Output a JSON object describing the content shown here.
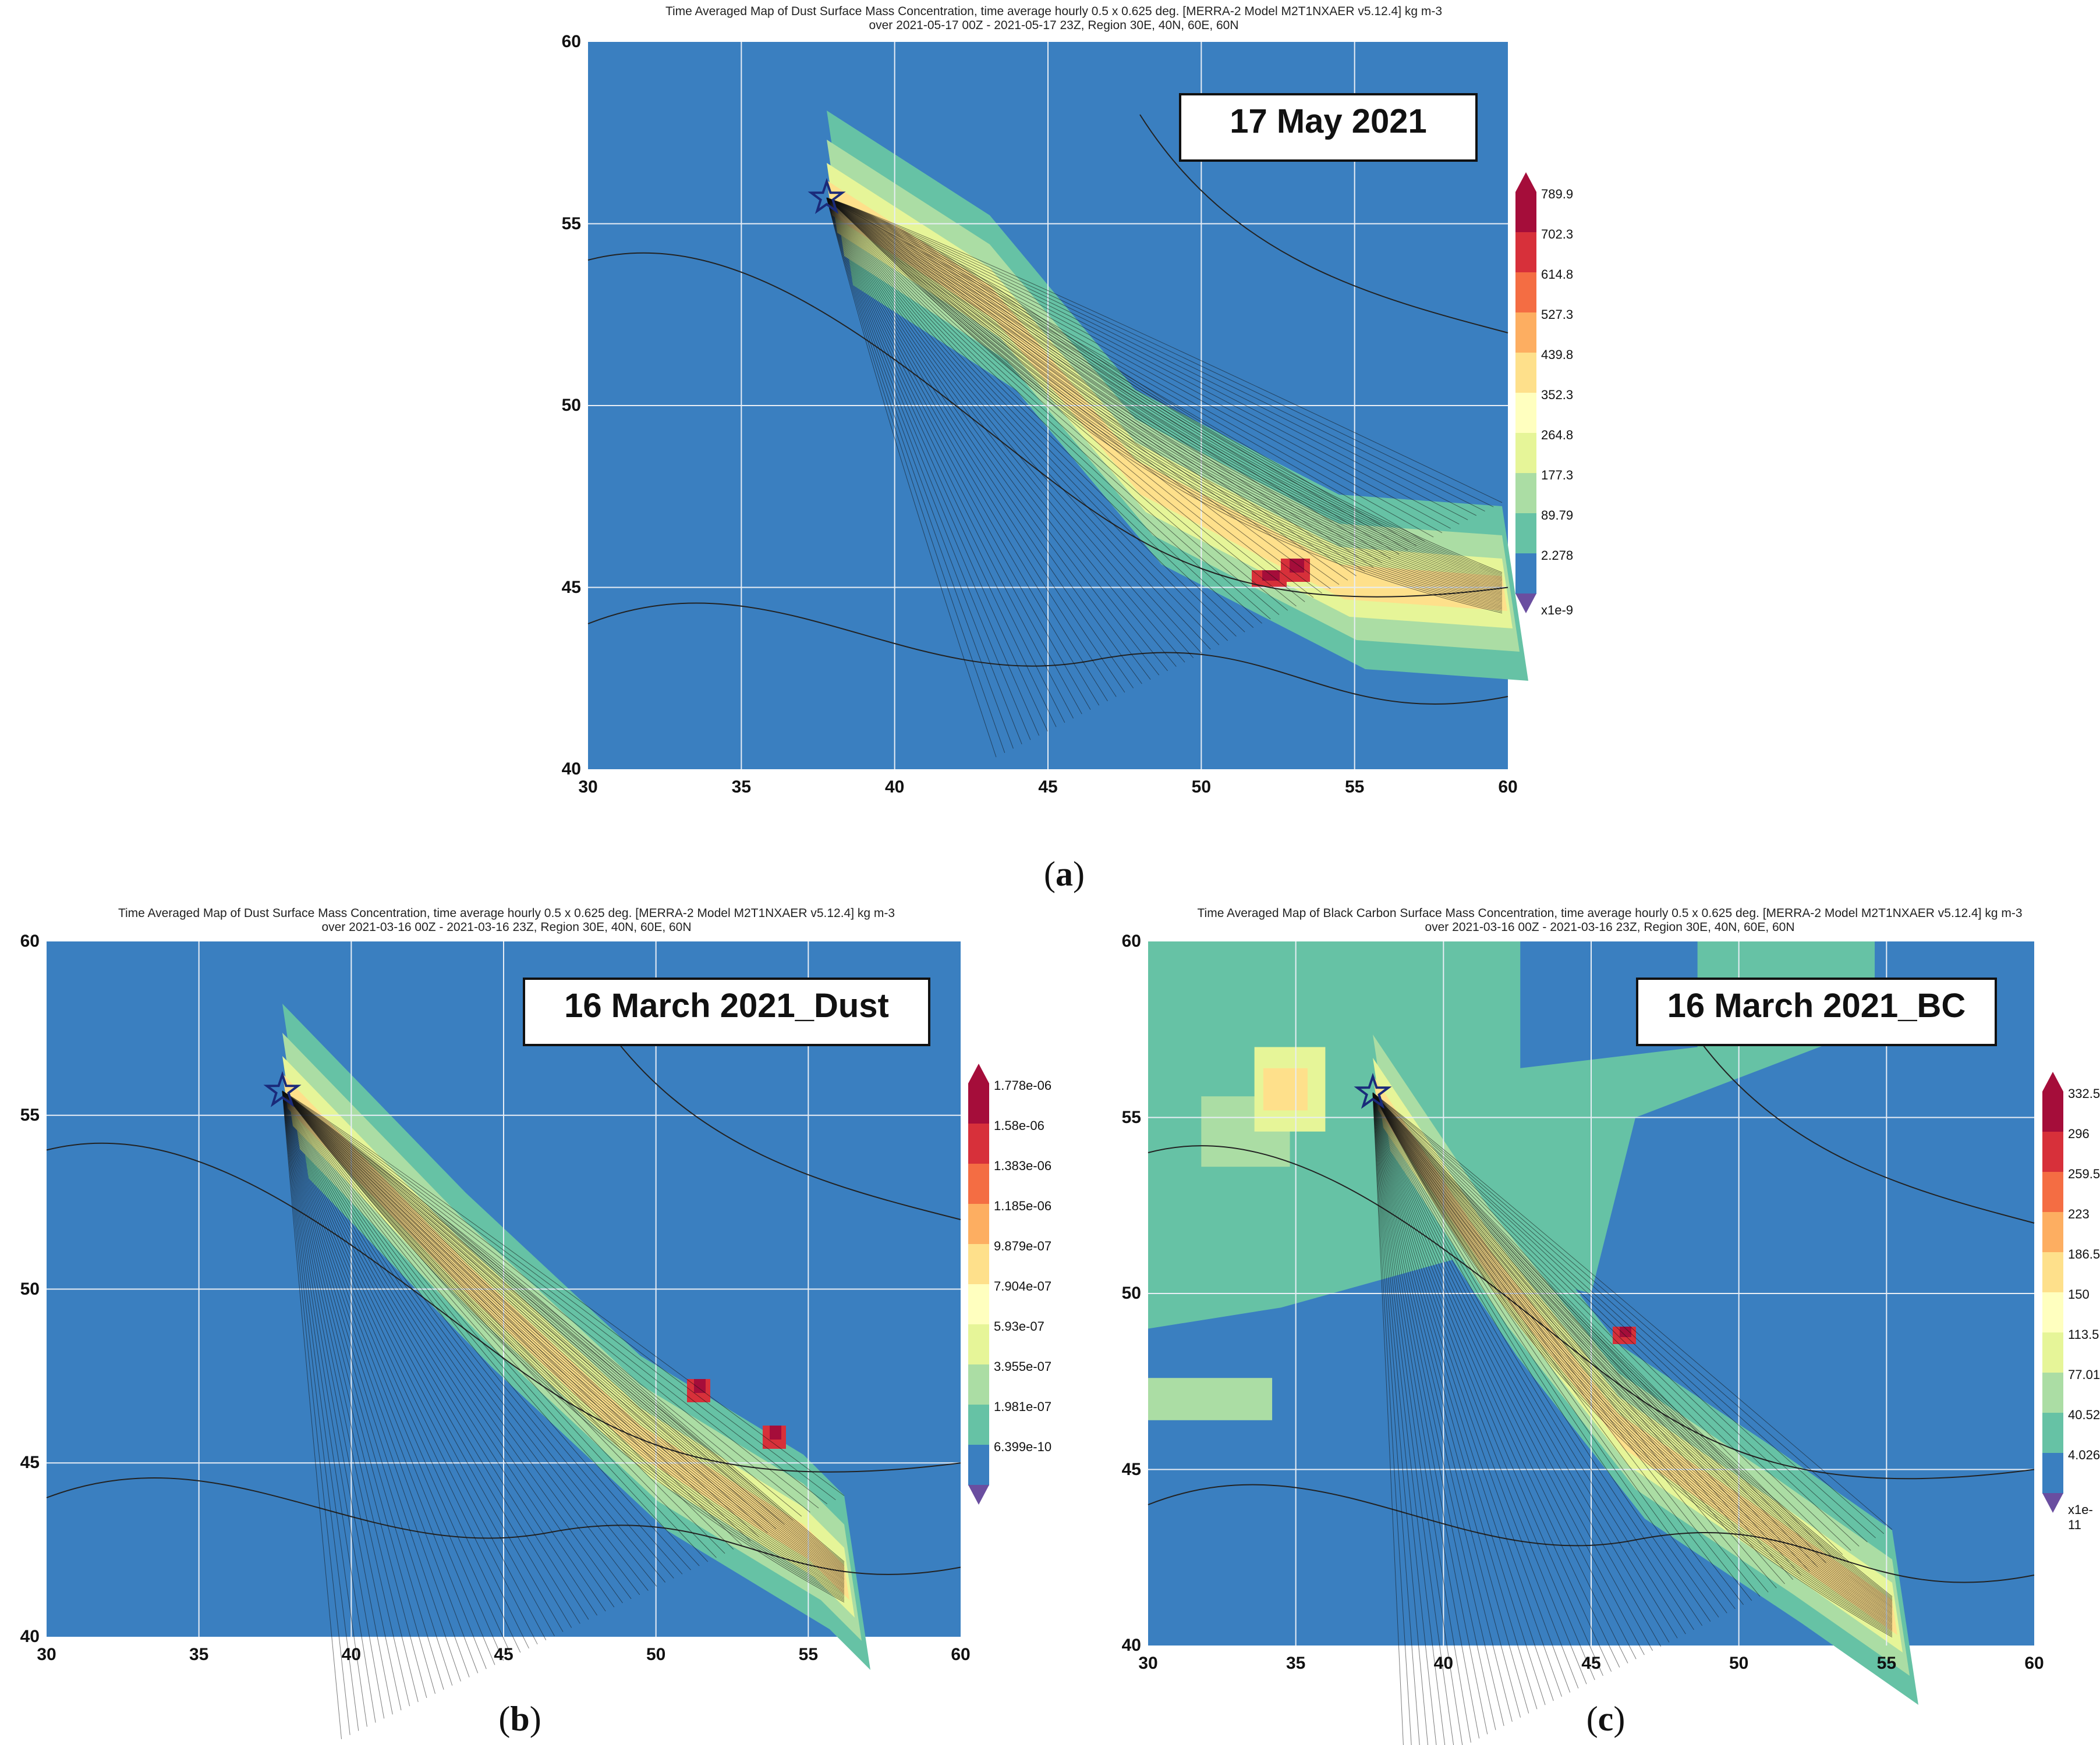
{
  "panels": [
    {
      "id": "a",
      "title_line1": "Time Averaged Map of Dust Surface Mass Concentration, time average hourly 0.5 x 0.625 deg. [MERRA-2 Model M2T1NXAER v5.12.4] kg m-3",
      "title_line2": "over 2021-05-17 00Z - 2021-05-17 23Z, Region 30E, 40N, 60E, 60N",
      "date_label": "17 May 2021",
      "caption_letter": "a",
      "x_ticks": [
        "30",
        "35",
        "40",
        "45",
        "50",
        "55",
        "60"
      ],
      "y_ticks": [
        "60",
        "55",
        "50",
        "45",
        "40"
      ],
      "grid_labels_x": [
        "35",
        "45",
        "55"
      ],
      "grid_labels_y": [
        "55",
        "50",
        "45"
      ],
      "colorbar_labels": [
        "789.9",
        "702.3",
        "614.8",
        "527.3",
        "439.8",
        "352.3",
        "264.8",
        "177.3",
        "89.79",
        "2.278"
      ],
      "colorbar_unit": "x1e-9",
      "colors": {
        "background": "#3a7fc0"
      }
    },
    {
      "id": "b",
      "title_line1": "Time Averaged Map of Dust Surface Mass Concentration, time average hourly 0.5 x 0.625 deg. [MERRA-2 Model M2T1NXAER v5.12.4] kg m-3",
      "title_line2": "over 2021-03-16 00Z - 2021-03-16 23Z, Region 30E, 40N, 60E, 60N",
      "date_label": "16 March 2021_Dust",
      "caption_letter": "b",
      "x_ticks": [
        "30",
        "35",
        "40",
        "45",
        "50",
        "55",
        "60"
      ],
      "y_ticks": [
        "60",
        "55",
        "50",
        "45",
        "40"
      ],
      "grid_labels_x": [
        "35",
        "40",
        "45",
        "55"
      ],
      "grid_labels_y": [
        "55",
        "50",
        "45"
      ],
      "colorbar_labels": [
        "1.778e-06",
        "1.58e-06",
        "1.383e-06",
        "1.185e-06",
        "9.879e-07",
        "7.904e-07",
        "5.93e-07",
        "3.955e-07",
        "1.981e-07",
        "6.399e-10"
      ],
      "colorbar_unit": "",
      "colors": {
        "background": "#3a7fc0"
      }
    },
    {
      "id": "c",
      "title_line1": "Time Averaged Map of Black Carbon Surface Mass Concentration, time average hourly 0.5 x 0.625 deg. [MERRA-2 Model M2T1NXAER v5.12.4] kg m-3",
      "title_line2": "over 2021-03-16 00Z - 2021-03-16 23Z, Region 30E, 40N, 60E, 60N",
      "date_label": "16 March 2021_BC",
      "caption_letter": "c",
      "x_ticks": [
        "30",
        "35",
        "40",
        "45",
        "50",
        "55",
        "60"
      ],
      "y_ticks": [
        "60",
        "55",
        "50",
        "45",
        "40"
      ],
      "grid_labels_x": [
        "35",
        "40"
      ],
      "grid_labels_y": [
        "55",
        "50",
        "45"
      ],
      "colorbar_labels": [
        "332.5",
        "296",
        "259.5",
        "223",
        "186.5",
        "150",
        "113.5",
        "77.01",
        "40.52",
        "4.026"
      ],
      "colorbar_unit": "x1e-11",
      "colors": {
        "background": "#3a7fc0"
      }
    }
  ],
  "colorbar_colors": [
    "#a50d3a",
    "#d7303a",
    "#f46d43",
    "#fdae61",
    "#fee08b",
    "#ffffbf",
    "#e6f598",
    "#abdda4",
    "#66c2a5",
    "#3a7fc0"
  ],
  "star_color": "#1a2a7a"
}
